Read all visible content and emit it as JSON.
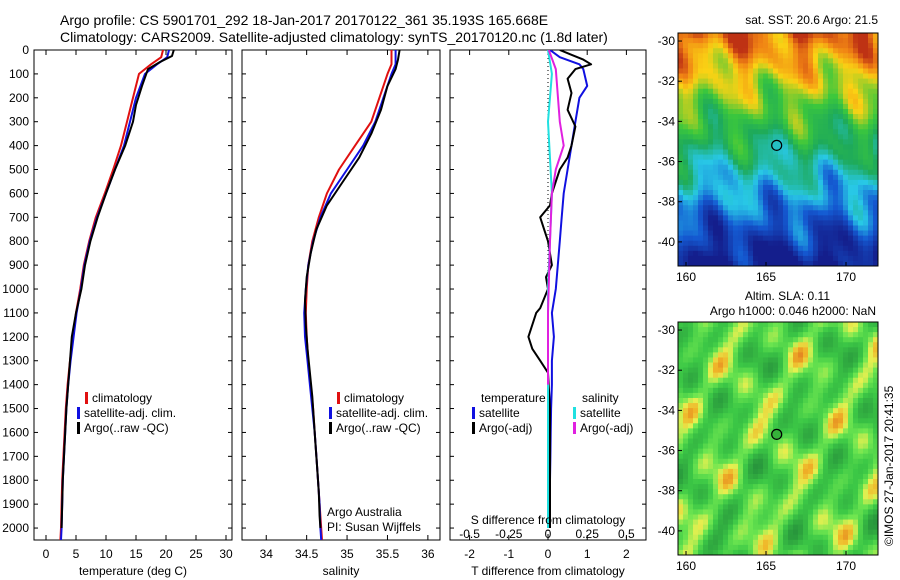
{
  "title": {
    "line1": "Argo profile: CS 5901701_292 18-Jan-2017 20170122_361 35.193S 165.668E",
    "line2": "Climatology: CARS2009. Satellite-adjusted climatology: synTS_20170120.nc (1.8d later)"
  },
  "side_stamp": "©IMOS 27-Jan-2017 20:41:35",
  "credit": {
    "line1": "Argo Australia",
    "line2": "PI: Susan Wijffels"
  },
  "colors": {
    "climatology": "#e01010",
    "satellite": "#1010e0",
    "argo": "#000000",
    "sal_satellite": "#20e0e0",
    "sal_argo": "#e020e0"
  },
  "chart_data": [
    {
      "type": "line",
      "xlabel": "temperature (deg C)",
      "xlim": [
        -2,
        31
      ],
      "ylim": [
        2050,
        0
      ],
      "xticks": [
        0,
        5,
        10,
        15,
        20,
        25,
        30
      ],
      "yticks": [
        0,
        100,
        200,
        300,
        400,
        500,
        600,
        700,
        800,
        900,
        1000,
        1100,
        1200,
        1300,
        1400,
        1500,
        1600,
        1700,
        1800,
        1900,
        2000
      ],
      "legend": [
        "climatology",
        "satellite-adj. clim.",
        "Argo(..raw -QC)"
      ],
      "series": [
        {
          "name": "climatology",
          "color": "#e01010",
          "points": [
            [
              19.5,
              0
            ],
            [
              19.2,
              30
            ],
            [
              17.5,
              60
            ],
            [
              15.5,
              100
            ],
            [
              14.5,
              200
            ],
            [
              13.5,
              300
            ],
            [
              12.5,
              400
            ],
            [
              11.2,
              500
            ],
            [
              9.8,
              600
            ],
            [
              8.3,
              700
            ],
            [
              7.2,
              800
            ],
            [
              6.3,
              900
            ],
            [
              5.7,
              1000
            ],
            [
              5.0,
              1100
            ],
            [
              4.5,
              1200
            ],
            [
              4.0,
              1300
            ],
            [
              3.6,
              1400
            ],
            [
              3.3,
              1500
            ],
            [
              3.1,
              1600
            ],
            [
              2.9,
              1700
            ],
            [
              2.7,
              1800
            ],
            [
              2.6,
              1900
            ],
            [
              2.5,
              2000
            ],
            [
              2.4,
              2050
            ]
          ]
        },
        {
          "name": "satellite-adj. clim.",
          "color": "#1010e0",
          "points": [
            [
              20.5,
              0
            ],
            [
              20.2,
              30
            ],
            [
              18.5,
              60
            ],
            [
              16.5,
              100
            ],
            [
              15.0,
              200
            ],
            [
              14.0,
              300
            ],
            [
              13.0,
              400
            ],
            [
              11.5,
              500
            ],
            [
              10.0,
              600
            ],
            [
              8.5,
              700
            ],
            [
              7.3,
              800
            ],
            [
              6.4,
              900
            ],
            [
              5.8,
              1000
            ],
            [
              5.1,
              1100
            ],
            [
              4.6,
              1200
            ],
            [
              4.1,
              1300
            ],
            [
              3.7,
              1400
            ],
            [
              3.4,
              1500
            ],
            [
              3.2,
              1600
            ],
            [
              3.0,
              1700
            ],
            [
              2.8,
              1800
            ],
            [
              2.7,
              1900
            ],
            [
              2.6,
              2000
            ],
            [
              2.5,
              2050
            ]
          ]
        },
        {
          "name": "Argo(..raw -QC)",
          "color": "#000000",
          "points": [
            [
              21.3,
              0
            ],
            [
              21.0,
              25
            ],
            [
              19.0,
              50
            ],
            [
              17.0,
              80
            ],
            [
              16.0,
              150
            ],
            [
              15.0,
              230
            ],
            [
              14.5,
              300
            ],
            [
              13.2,
              400
            ],
            [
              11.5,
              500
            ],
            [
              10.0,
              600
            ],
            [
              8.6,
              700
            ],
            [
              7.4,
              800
            ],
            [
              6.5,
              900
            ],
            [
              5.9,
              1000
            ],
            [
              5.0,
              1100
            ],
            [
              4.3,
              1200
            ],
            [
              4.0,
              1300
            ],
            [
              3.7,
              1400
            ],
            [
              3.4,
              1500
            ],
            [
              3.2,
              1600
            ],
            [
              3.0,
              1700
            ],
            [
              2.8,
              1800
            ],
            [
              2.7,
              1900
            ],
            [
              2.6,
              2000
            ]
          ]
        }
      ]
    },
    {
      "type": "line",
      "xlabel": "salinity",
      "xlim": [
        33.7,
        36.15
      ],
      "ylim": [
        2050,
        0
      ],
      "xticks": [
        34,
        34.5,
        35,
        35.5,
        36
      ],
      "legend": [
        "climatology",
        "satellite-adj. clim.",
        "Argo(..raw -QC)"
      ],
      "series": [
        {
          "name": "climatology",
          "color": "#e01010",
          "points": [
            [
              35.55,
              0
            ],
            [
              35.55,
              60
            ],
            [
              35.5,
              100
            ],
            [
              35.4,
              200
            ],
            [
              35.3,
              300
            ],
            [
              35.1,
              400
            ],
            [
              34.9,
              500
            ],
            [
              34.75,
              600
            ],
            [
              34.65,
              700
            ],
            [
              34.57,
              800
            ],
            [
              34.52,
              900
            ],
            [
              34.5,
              1000
            ],
            [
              34.49,
              1100
            ],
            [
              34.5,
              1200
            ],
            [
              34.52,
              1300
            ],
            [
              34.55,
              1400
            ],
            [
              34.58,
              1500
            ],
            [
              34.6,
              1600
            ],
            [
              34.62,
              1700
            ],
            [
              34.64,
              1800
            ],
            [
              34.66,
              1900
            ],
            [
              34.68,
              2000
            ],
            [
              34.69,
              2050
            ]
          ]
        },
        {
          "name": "satellite-adj. clim.",
          "color": "#1010e0",
          "points": [
            [
              35.6,
              0
            ],
            [
              35.6,
              60
            ],
            [
              35.55,
              100
            ],
            [
              35.45,
              200
            ],
            [
              35.35,
              300
            ],
            [
              35.2,
              400
            ],
            [
              35.0,
              500
            ],
            [
              34.8,
              600
            ],
            [
              34.67,
              700
            ],
            [
              34.58,
              800
            ],
            [
              34.52,
              900
            ],
            [
              34.49,
              1000
            ],
            [
              34.47,
              1100
            ],
            [
              34.48,
              1200
            ],
            [
              34.51,
              1300
            ],
            [
              34.54,
              1400
            ],
            [
              34.57,
              1500
            ],
            [
              34.6,
              1600
            ],
            [
              34.62,
              1700
            ],
            [
              34.64,
              1800
            ],
            [
              34.66,
              1900
            ],
            [
              34.67,
              2000
            ],
            [
              34.68,
              2050
            ]
          ]
        },
        {
          "name": "Argo(..raw -QC)",
          "color": "#000000",
          "points": [
            [
              35.65,
              0
            ],
            [
              35.63,
              40
            ],
            [
              35.6,
              80
            ],
            [
              35.5,
              150
            ],
            [
              35.42,
              250
            ],
            [
              35.3,
              350
            ],
            [
              35.15,
              450
            ],
            [
              34.95,
              550
            ],
            [
              34.75,
              650
            ],
            [
              34.62,
              750
            ],
            [
              34.55,
              850
            ],
            [
              34.5,
              950
            ],
            [
              34.48,
              1050
            ],
            [
              34.49,
              1150
            ],
            [
              34.51,
              1250
            ],
            [
              34.54,
              1350
            ],
            [
              34.57,
              1450
            ],
            [
              34.59,
              1550
            ],
            [
              34.61,
              1650
            ],
            [
              34.63,
              1750
            ],
            [
              34.65,
              1850
            ],
            [
              34.66,
              1950
            ],
            [
              34.67,
              2000
            ]
          ]
        }
      ]
    },
    {
      "type": "line",
      "xlabel": "T difference from climatology",
      "xlabel_top": "S difference from climatology",
      "xlim": [
        -2.5,
        2.5
      ],
      "ylim": [
        2050,
        0
      ],
      "xticks": [
        -2,
        -1,
        0,
        1,
        2
      ],
      "xticks_top": [
        "-0.5",
        "-0.25",
        "0",
        "0.25",
        "0.5"
      ],
      "legend_groups": [
        {
          "heading": "temperature",
          "entries": [
            "satellite",
            "Argo(-adj)"
          ]
        },
        {
          "heading": "salinity",
          "entries": [
            "satellite",
            "Argo(-adj)"
          ]
        }
      ],
      "series": [
        {
          "name": "temperature satellite",
          "color": "#1010e0",
          "points": [
            [
              0.05,
              0
            ],
            [
              0.3,
              30
            ],
            [
              0.8,
              60
            ],
            [
              0.9,
              80
            ],
            [
              1.0,
              150
            ],
            [
              0.8,
              200
            ],
            [
              0.7,
              300
            ],
            [
              0.6,
              400
            ],
            [
              0.5,
              500
            ],
            [
              0.4,
              600
            ],
            [
              0.35,
              700
            ],
            [
              0.3,
              800
            ],
            [
              0.25,
              900
            ],
            [
              0.2,
              1000
            ],
            [
              0.1,
              1100
            ],
            [
              0.15,
              1200
            ],
            [
              0.1,
              1300
            ],
            [
              0.1,
              1400
            ],
            [
              0.08,
              1500
            ],
            [
              0.07,
              1600
            ],
            [
              0.06,
              1700
            ],
            [
              0.05,
              1800
            ],
            [
              0.05,
              1900
            ],
            [
              0.05,
              2000
            ]
          ]
        },
        {
          "name": "temperature Argo(-adj)",
          "color": "#000000",
          "points": [
            [
              0.3,
              0
            ],
            [
              0.6,
              20
            ],
            [
              0.9,
              40
            ],
            [
              1.1,
              60
            ],
            [
              0.7,
              80
            ],
            [
              0.5,
              120
            ],
            [
              0.6,
              180
            ],
            [
              0.5,
              250
            ],
            [
              0.7,
              320
            ],
            [
              0.6,
              400
            ],
            [
              0.5,
              450
            ],
            [
              0.3,
              500
            ],
            [
              0.2,
              550
            ],
            [
              0.1,
              600
            ],
            [
              0.05,
              650
            ],
            [
              -0.2,
              700
            ],
            [
              -0.1,
              750
            ],
            [
              0.0,
              800
            ],
            [
              0.1,
              900
            ],
            [
              -0.05,
              950
            ],
            [
              0.0,
              1000
            ],
            [
              -0.2,
              1080
            ],
            [
              -0.3,
              1100
            ],
            [
              -0.5,
              1200
            ],
            [
              -0.4,
              1250
            ],
            [
              -0.2,
              1300
            ],
            [
              0.0,
              1350
            ],
            [
              0.05,
              1500
            ],
            [
              0.05,
              1700
            ],
            [
              0.05,
              2000
            ]
          ]
        },
        {
          "name": "salinity satellite",
          "color": "#20e0e0",
          "points": [
            [
              0.0,
              0
            ],
            [
              0.1,
              100
            ],
            [
              0.0,
              300
            ],
            [
              0.1,
              600
            ],
            [
              0.0,
              1000
            ],
            [
              0.0,
              1400
            ],
            [
              0.0,
              2000
            ]
          ]
        },
        {
          "name": "salinity Argo(-adj)",
          "color": "#e020e0",
          "points": [
            [
              0.02,
              0
            ],
            [
              0.2,
              80
            ],
            [
              0.3,
              300
            ],
            [
              0.4,
              400
            ],
            [
              0.2,
              500
            ],
            [
              0.1,
              600
            ],
            [
              0.05,
              800
            ],
            [
              0.0,
              1100
            ],
            [
              0.0,
              1400
            ]
          ]
        }
      ]
    },
    {
      "type": "heatmap",
      "title": "sat. SST: 20.6 Argo: 21.5",
      "xlim": [
        159.5,
        172
      ],
      "ylim": [
        -41.2,
        -29.6
      ],
      "xticks": [
        160,
        165,
        170
      ],
      "yticks": [
        -30,
        -32,
        -34,
        -36,
        -38,
        -40
      ],
      "marker": [
        165.668,
        -35.193
      ]
    },
    {
      "type": "heatmap",
      "title": "Altim. SLA: 0.11",
      "subtitle": "Argo h1000: 0.046 h2000: NaN",
      "xlim": [
        159.5,
        172
      ],
      "ylim": [
        -41.2,
        -29.6
      ],
      "xticks": [
        160,
        165,
        170
      ],
      "yticks": [
        -30,
        -32,
        -34,
        -36,
        -38,
        -40
      ],
      "marker": [
        165.668,
        -35.193
      ]
    }
  ]
}
